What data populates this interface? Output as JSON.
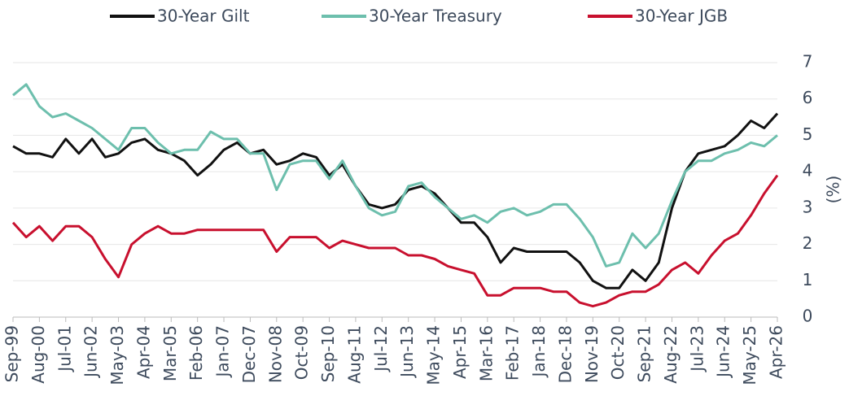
{
  "chart_data": {
    "type": "line",
    "categories": [
      "Sep-99",
      null,
      "Aug-00",
      null,
      "Jul-01",
      null,
      "Jun-02",
      null,
      "May-03",
      null,
      "Apr-04",
      null,
      "Mar-05",
      null,
      "Feb-06",
      null,
      "Jan-07",
      null,
      "Dec-07",
      null,
      "Nov-08",
      null,
      "Oct-09",
      null,
      "Sep-10",
      null,
      "Aug-11",
      null,
      "Jul-12",
      null,
      "Jun-13",
      null,
      "May-14",
      null,
      "Apr-15",
      null,
      "Mar-16",
      null,
      "Feb-17",
      null,
      "Jan-18",
      null,
      "Dec-18",
      null,
      "Nov-19",
      null,
      "Oct-20",
      null,
      "Sep-21",
      null,
      "Aug-22",
      null,
      "Jul-23",
      null,
      "Jun-24",
      null,
      "May-25",
      null,
      "Apr-26"
    ],
    "series": [
      {
        "name": "30-Year Gilt",
        "color": "#111111",
        "values": [
          4.7,
          4.5,
          4.5,
          4.4,
          4.9,
          4.5,
          4.9,
          4.4,
          4.5,
          4.8,
          4.9,
          4.6,
          4.5,
          4.3,
          3.9,
          4.2,
          4.6,
          4.8,
          4.5,
          4.6,
          4.2,
          4.3,
          4.5,
          4.4,
          3.9,
          4.2,
          3.6,
          3.1,
          3.0,
          3.1,
          3.5,
          3.6,
          3.4,
          3.0,
          2.6,
          2.6,
          2.2,
          1.5,
          1.9,
          1.8,
          1.8,
          1.8,
          1.8,
          1.5,
          1.0,
          0.8,
          0.8,
          1.3,
          1.0,
          1.5,
          3.0,
          4.0,
          4.5,
          4.6,
          4.7,
          5.0,
          5.4,
          5.2,
          5.6
        ]
      },
      {
        "name": "30-Year Treasury",
        "color": "#6dbfad",
        "values": [
          6.1,
          6.4,
          5.8,
          5.5,
          5.6,
          5.4,
          5.2,
          4.9,
          4.6,
          5.2,
          5.2,
          4.8,
          4.5,
          4.6,
          4.6,
          5.1,
          4.9,
          4.9,
          4.5,
          4.5,
          3.5,
          4.2,
          4.3,
          4.3,
          3.8,
          4.3,
          3.6,
          3.0,
          2.8,
          2.9,
          3.6,
          3.7,
          3.3,
          3.0,
          2.7,
          2.8,
          2.6,
          2.9,
          3.0,
          2.8,
          2.9,
          3.1,
          3.1,
          2.7,
          2.2,
          1.4,
          1.5,
          2.3,
          1.9,
          2.3,
          3.2,
          4.0,
          4.3,
          4.3,
          4.5,
          4.6,
          4.8,
          4.7,
          5.0
        ]
      },
      {
        "name": "30-Year JGB",
        "color": "#c8102e",
        "values": [
          2.6,
          2.2,
          2.5,
          2.1,
          2.5,
          2.5,
          2.2,
          1.6,
          1.1,
          2.0,
          2.3,
          2.5,
          2.3,
          2.3,
          2.4,
          2.4,
          2.4,
          2.4,
          2.4,
          2.4,
          1.8,
          2.2,
          2.2,
          2.2,
          1.9,
          2.1,
          2.0,
          1.9,
          1.9,
          1.9,
          1.7,
          1.7,
          1.6,
          1.4,
          1.3,
          1.2,
          0.6,
          0.6,
          0.8,
          0.8,
          0.8,
          0.7,
          0.7,
          0.4,
          0.3,
          0.4,
          0.6,
          0.7,
          0.7,
          0.9,
          1.3,
          1.5,
          1.2,
          1.7,
          2.1,
          2.3,
          2.8,
          3.4,
          3.9
        ]
      }
    ],
    "y_label": "(%)",
    "ylim": [
      0,
      7
    ],
    "yticks": [
      0,
      1,
      2,
      3,
      4,
      5,
      6,
      7
    ],
    "grid": true,
    "legend": "top"
  }
}
